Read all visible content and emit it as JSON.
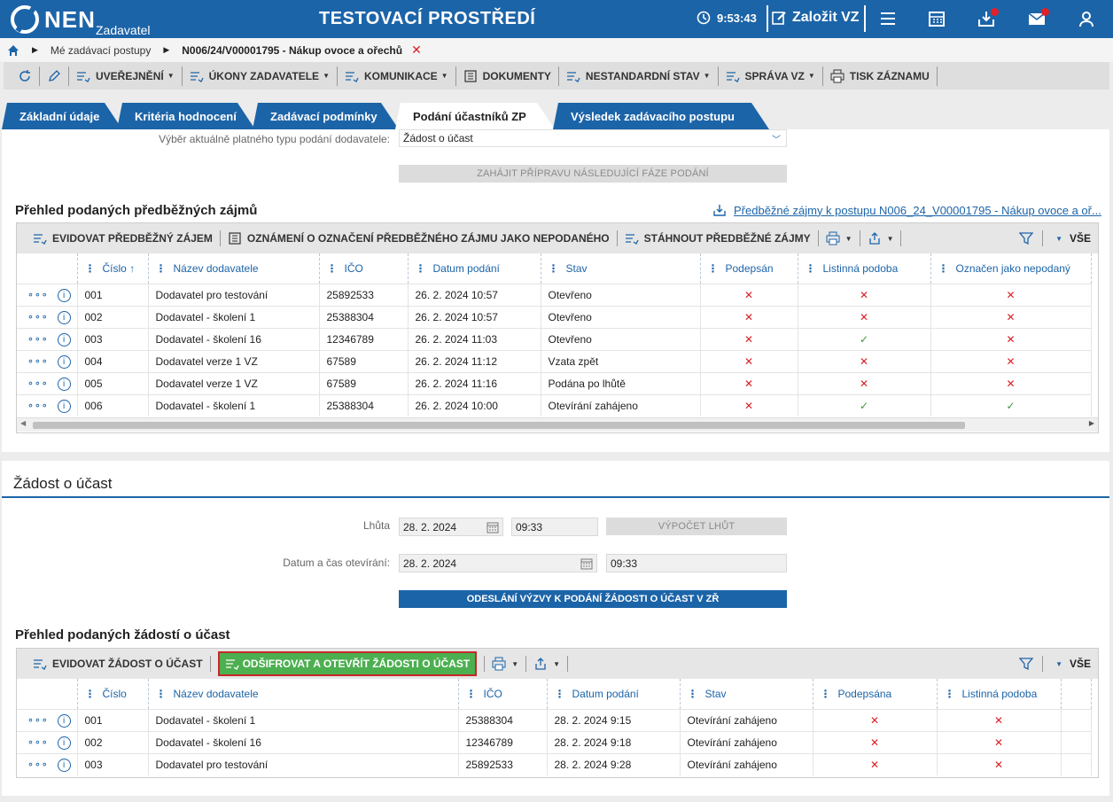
{
  "header": {
    "logo_text": "NEN",
    "logo_sub": "Zadavatel",
    "title": "TESTOVACÍ PROSTŘEDÍ",
    "clock": "9:53:43",
    "create_label": "Založit VZ"
  },
  "breadcrumb": {
    "item1": "Mé zadávací postupy",
    "item2": "N006/24/V00001795 - Nákup ovoce a ořechů"
  },
  "toolbar": {
    "publish": "UVEŘEJNĚNÍ",
    "actions": "ÚKONY ZADAVATELE",
    "communication": "KOMUNIKACE",
    "documents": "DOKUMENTY",
    "nonstandard": "NESTANDARDNÍ STAV",
    "management": "SPRÁVA VZ",
    "print": "TISK ZÁZNAMU"
  },
  "tabs": [
    {
      "label": "Základní údaje"
    },
    {
      "label": "Kritéria hodnocení"
    },
    {
      "label": "Zadávací podmínky"
    },
    {
      "label": "Podání účastníků ZP"
    },
    {
      "label": "Výsledek zadávacího postupu"
    }
  ],
  "top_section": {
    "type_label": "Výběr aktuálně platného typu podání dodavatele:",
    "type_value": "Žádost o účast",
    "prepare_button": "ZAHÁJIT PŘÍPRAVU NÁSLEDUJÍCÍ FÁZE PODÁNÍ"
  },
  "prelim": {
    "title": "Přehled podaných předběžných zájmů",
    "link": "Předběžné zájmy k postupu N006_24_V00001795 - Nákup ovoce a oř...",
    "tool_register": "EVIDOVAT PŘEDBĚŽNÝ ZÁJEM",
    "tool_notice": "OZNÁMENÍ O OZNAČENÍ PŘEDBĚŽNÉHO ZÁJMU JAKO NEPODANÉHO",
    "tool_download": "STÁHNOUT PŘEDBĚŽNÉ ZÁJMY",
    "all_label": "VŠE",
    "columns": [
      "Číslo",
      "Název dodavatele",
      "IČO",
      "Datum podání",
      "Stav",
      "Podepsán",
      "Listinná podoba",
      "Označen jako nepodaný"
    ],
    "rows": [
      {
        "num": "001",
        "name": "Dodavatel pro testování",
        "ico": "25892533",
        "date": "26. 2. 2024 10:57",
        "state": "Otevřeno",
        "signed": "✕",
        "paper": "✕",
        "marked": "✕"
      },
      {
        "num": "002",
        "name": "Dodavatel - školení 1",
        "ico": "25388304",
        "date": "26. 2. 2024 10:57",
        "state": "Otevřeno",
        "signed": "✕",
        "paper": "✕",
        "marked": "✕"
      },
      {
        "num": "003",
        "name": "Dodavatel - školení 16",
        "ico": "12346789",
        "date": "26. 2. 2024 11:03",
        "state": "Otevřeno",
        "signed": "✕",
        "paper": "✓",
        "marked": "✕"
      },
      {
        "num": "004",
        "name": "Dodavatel verze 1 VZ",
        "ico": "67589",
        "date": "26. 2. 2024 11:12",
        "state": "Vzata zpět",
        "signed": "✕",
        "paper": "✕",
        "marked": "✕"
      },
      {
        "num": "005",
        "name": "Dodavatel verze 1 VZ",
        "ico": "67589",
        "date": "26. 2. 2024 11:16",
        "state": "Podána po lhůtě",
        "signed": "✕",
        "paper": "✕",
        "marked": "✕"
      },
      {
        "num": "006",
        "name": "Dodavatel - školení 1",
        "ico": "25388304",
        "date": "26. 2. 2024 10:00",
        "state": "Otevírání zahájeno",
        "signed": "✕",
        "paper": "✓",
        "marked": "✓"
      }
    ]
  },
  "request": {
    "title": "Žádost o účast",
    "deadline_label": "Lhůta",
    "deadline_date": "28. 2. 2024",
    "deadline_time": "09:33",
    "calc_button": "VÝPOČET LHŮT",
    "open_label": "Datum a čas otevírání:",
    "open_date": "28. 2. 2024",
    "open_time": "09:33",
    "send_button": "ODESLÁNÍ VÝZVY K PODÁNÍ ŽÁDOSTI O ÚČAST V ZŘ",
    "list_title": "Přehled podaných žádostí o účast",
    "tool_register": "EVIDOVAT ŽÁDOST O ÚČAST",
    "tool_decrypt": "ODŠIFROVAT A OTEVŘÍT ŽÁDOSTI O ÚČAST",
    "all_label": "VŠE",
    "columns": [
      "Číslo",
      "Název dodavatele",
      "IČO",
      "Datum podání",
      "Stav",
      "Podepsána",
      "Listinná podoba"
    ],
    "rows": [
      {
        "num": "001",
        "name": "Dodavatel - školení 1",
        "ico": "25388304",
        "date": "28. 2. 2024 9:15",
        "state": "Otevírání zahájeno",
        "signed": "✕",
        "paper": "✕"
      },
      {
        "num": "002",
        "name": "Dodavatel - školení 16",
        "ico": "12346789",
        "date": "28. 2. 2024 9:18",
        "state": "Otevírání zahájeno",
        "signed": "✕",
        "paper": "✕"
      },
      {
        "num": "003",
        "name": "Dodavatel pro testování",
        "ico": "25892533",
        "date": "28. 2. 2024 9:28",
        "state": "Otevírání zahájeno",
        "signed": "✕",
        "paper": "✕"
      }
    ]
  }
}
